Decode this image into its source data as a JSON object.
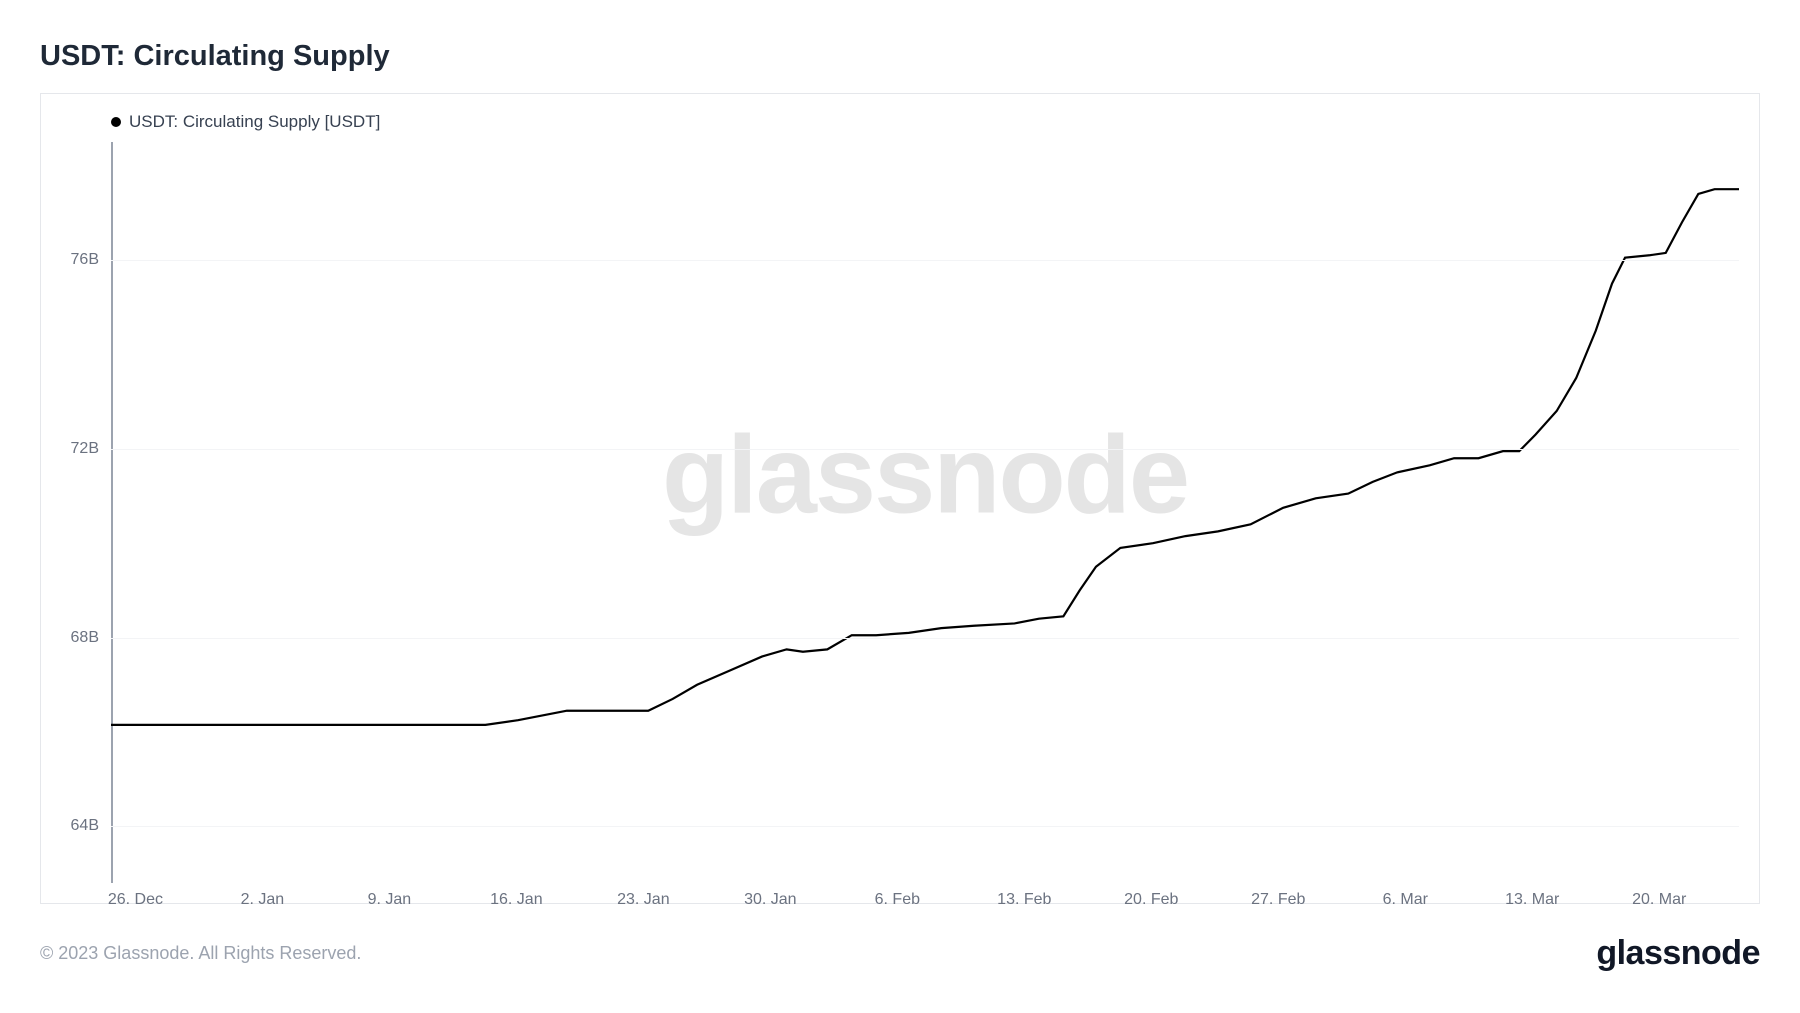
{
  "title": "USDT: Circulating Supply",
  "legend_label": "USDT: Circulating Supply [USDT]",
  "watermark": "glassnode",
  "copyright": "© 2023 Glassnode. All Rights Reserved.",
  "brand": "glassnode",
  "chart": {
    "type": "line",
    "line_color": "#000000",
    "line_width": 2.2,
    "background_color": "#ffffff",
    "border_color": "#e5e7eb",
    "grid_color": "#f3f4f6",
    "axis_color": "#9ca3af",
    "watermark_color": "#e5e5e5",
    "label_color": "#6b7280",
    "label_fontsize": 16,
    "ylim": [
      62.8,
      78.5
    ],
    "y_ticks": [
      {
        "value": 64,
        "label": "64B"
      },
      {
        "value": 68,
        "label": "68B"
      },
      {
        "value": 72,
        "label": "72B"
      },
      {
        "value": 76,
        "label": "76B"
      }
    ],
    "x_ticks": [
      {
        "x": 0.015,
        "label": "26. Dec"
      },
      {
        "x": 0.093,
        "label": "2. Jan"
      },
      {
        "x": 0.171,
        "label": "9. Jan"
      },
      {
        "x": 0.249,
        "label": "16. Jan"
      },
      {
        "x": 0.327,
        "label": "23. Jan"
      },
      {
        "x": 0.405,
        "label": "30. Jan"
      },
      {
        "x": 0.483,
        "label": "6. Feb"
      },
      {
        "x": 0.561,
        "label": "13. Feb"
      },
      {
        "x": 0.639,
        "label": "20. Feb"
      },
      {
        "x": 0.717,
        "label": "27. Feb"
      },
      {
        "x": 0.795,
        "label": "6. Mar"
      },
      {
        "x": 0.873,
        "label": "13. Mar"
      },
      {
        "x": 0.951,
        "label": "20. Mar"
      }
    ],
    "series": [
      {
        "x": 0.0,
        "y": 66.15
      },
      {
        "x": 0.05,
        "y": 66.15
      },
      {
        "x": 0.1,
        "y": 66.15
      },
      {
        "x": 0.15,
        "y": 66.15
      },
      {
        "x": 0.2,
        "y": 66.15
      },
      {
        "x": 0.23,
        "y": 66.15
      },
      {
        "x": 0.25,
        "y": 66.25
      },
      {
        "x": 0.28,
        "y": 66.45
      },
      {
        "x": 0.3,
        "y": 66.45
      },
      {
        "x": 0.33,
        "y": 66.45
      },
      {
        "x": 0.345,
        "y": 66.7
      },
      {
        "x": 0.36,
        "y": 67.0
      },
      {
        "x": 0.38,
        "y": 67.3
      },
      {
        "x": 0.4,
        "y": 67.6
      },
      {
        "x": 0.415,
        "y": 67.75
      },
      {
        "x": 0.425,
        "y": 67.7
      },
      {
        "x": 0.44,
        "y": 67.75
      },
      {
        "x": 0.455,
        "y": 68.05
      },
      {
        "x": 0.47,
        "y": 68.05
      },
      {
        "x": 0.49,
        "y": 68.1
      },
      {
        "x": 0.51,
        "y": 68.2
      },
      {
        "x": 0.53,
        "y": 68.25
      },
      {
        "x": 0.555,
        "y": 68.3
      },
      {
        "x": 0.57,
        "y": 68.4
      },
      {
        "x": 0.585,
        "y": 68.45
      },
      {
        "x": 0.595,
        "y": 69.0
      },
      {
        "x": 0.605,
        "y": 69.5
      },
      {
        "x": 0.62,
        "y": 69.9
      },
      {
        "x": 0.64,
        "y": 70.0
      },
      {
        "x": 0.66,
        "y": 70.15
      },
      {
        "x": 0.68,
        "y": 70.25
      },
      {
        "x": 0.7,
        "y": 70.4
      },
      {
        "x": 0.72,
        "y": 70.75
      },
      {
        "x": 0.74,
        "y": 70.95
      },
      {
        "x": 0.76,
        "y": 71.05
      },
      {
        "x": 0.775,
        "y": 71.3
      },
      {
        "x": 0.79,
        "y": 71.5
      },
      {
        "x": 0.81,
        "y": 71.65
      },
      {
        "x": 0.825,
        "y": 71.8
      },
      {
        "x": 0.84,
        "y": 71.8
      },
      {
        "x": 0.855,
        "y": 71.95
      },
      {
        "x": 0.865,
        "y": 71.95
      },
      {
        "x": 0.875,
        "y": 72.3
      },
      {
        "x": 0.888,
        "y": 72.8
      },
      {
        "x": 0.9,
        "y": 73.5
      },
      {
        "x": 0.912,
        "y": 74.5
      },
      {
        "x": 0.922,
        "y": 75.5
      },
      {
        "x": 0.93,
        "y": 76.05
      },
      {
        "x": 0.945,
        "y": 76.1
      },
      {
        "x": 0.955,
        "y": 76.15
      },
      {
        "x": 0.965,
        "y": 76.8
      },
      {
        "x": 0.975,
        "y": 77.4
      },
      {
        "x": 0.985,
        "y": 77.5
      },
      {
        "x": 1.0,
        "y": 77.5
      }
    ]
  }
}
